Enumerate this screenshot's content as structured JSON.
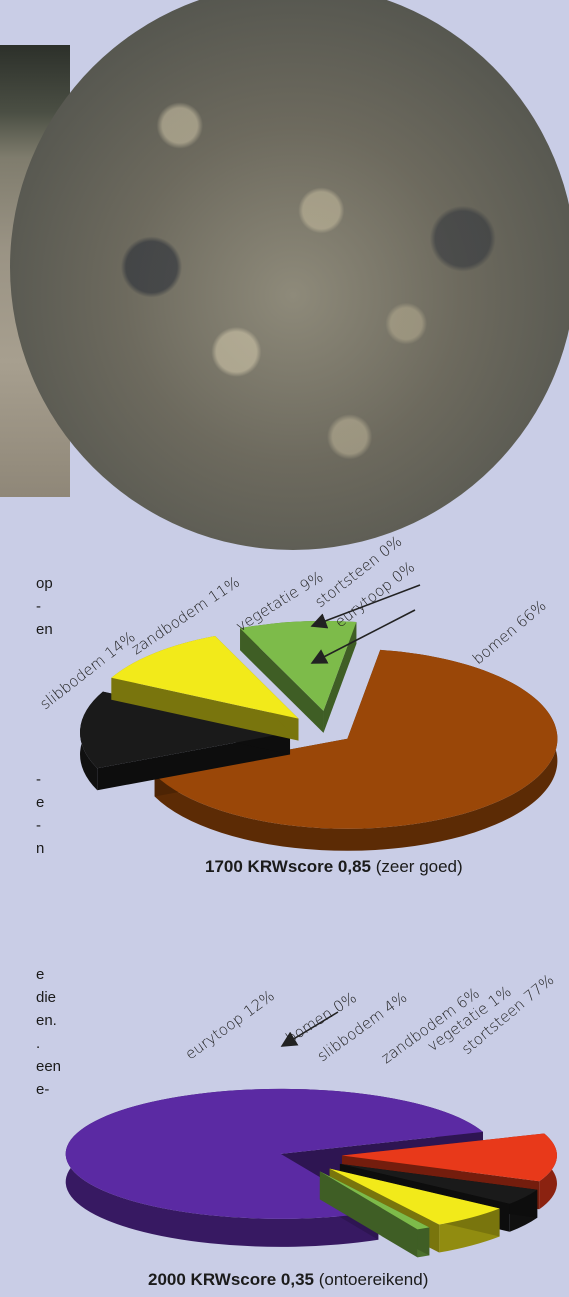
{
  "side_text": {
    "block1": [
      "op",
      "-",
      "en"
    ],
    "block2": [
      "-",
      "e",
      "-",
      "n"
    ],
    "block3": [
      "e",
      "die",
      "en.",
      ".",
      "een",
      "e-"
    ]
  },
  "captions": {
    "chart1": {
      "bold": "1700 KRWscore 0,85",
      "rest": " (zeer goed)"
    },
    "chart2": {
      "bold": "2000 KRWscore 0,35",
      "rest": " (ontoereikend)"
    }
  },
  "chart_data": [
    {
      "type": "pie",
      "title": "1700 KRWscore 0,85 (zeer goed)",
      "categories": [
        "bomen",
        "slibbodem",
        "zandbodem",
        "vegetatie",
        "stortsteen",
        "eurytoop"
      ],
      "values": [
        66,
        14,
        11,
        9,
        0,
        0
      ],
      "labels": [
        "bomen 66%",
        "slibbodem 14%",
        "zandbodem 11%",
        "vegetatie 9%",
        "stortsteen 0%",
        "eurytoop 0%"
      ],
      "colors": {
        "bomen": "#9a4708",
        "slibbodem": "#1a1a1a",
        "zandbodem": "#f2ea1a",
        "vegetatie": "#7dbb4a",
        "stortsteen": "#999999",
        "eurytoop": "#e03a1e"
      }
    },
    {
      "type": "pie",
      "title": "2000 KRWscore 0,35 (ontoereikend)",
      "categories": [
        "stortsteen",
        "eurytoop",
        "bomen",
        "slibbodem",
        "zandbodem",
        "vegetatie"
      ],
      "values": [
        77,
        12,
        0,
        4,
        6,
        1
      ],
      "labels": [
        "stortsteen 77%",
        "eurytoop 12%",
        "bomen 0%",
        "slibbodem 4%",
        "zandbodem 6%",
        "vegetatie 1%"
      ],
      "colors": {
        "stortsteen": "#5b2aa3",
        "eurytoop": "#e8391a",
        "bomen": "#9a4708",
        "slibbodem": "#1a1a1a",
        "zandbodem": "#f2ea1a",
        "vegetatie": "#7dbb4a"
      }
    }
  ]
}
